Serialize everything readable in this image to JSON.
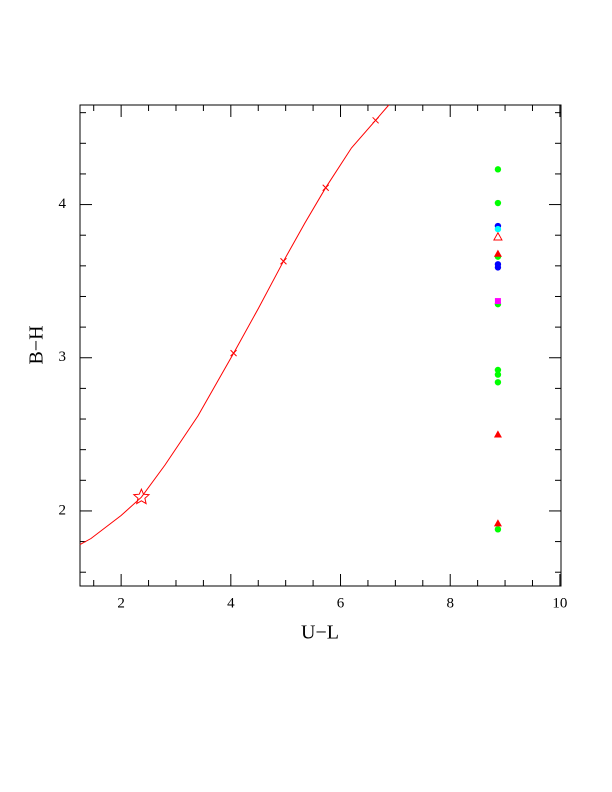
{
  "chart_data": {
    "type": "scatter",
    "xlabel": "U−L",
    "ylabel": "B−H",
    "xlim": [
      1.25,
      10.02
    ],
    "ylim": [
      1.51,
      4.65
    ],
    "xticks": [
      2,
      4,
      6,
      8,
      10
    ],
    "yticks": [
      2,
      3,
      4
    ],
    "xminorticks": [
      1.5,
      2.5,
      3,
      3.5,
      4.5,
      5,
      5.5,
      6.5,
      7,
      7.5,
      8.5,
      9,
      9.5
    ],
    "yminorticks": [
      1.6,
      1.8,
      2.2,
      2.4,
      2.6,
      2.8,
      3.2,
      3.4,
      3.6,
      3.8,
      4.2,
      4.4,
      4.6
    ],
    "series": [
      {
        "marker": "line",
        "color": "#ff0000",
        "x": [
          1.25,
          1.45,
          2.0,
          2.37,
          2.8,
          3.4,
          4.05,
          4.5,
          4.96,
          5.35,
          5.73,
          6.2,
          6.64,
          6.88
        ],
        "y": [
          1.78,
          1.82,
          1.97,
          2.09,
          2.3,
          2.62,
          3.03,
          3.32,
          3.63,
          3.88,
          4.11,
          4.37,
          4.55,
          4.65
        ]
      },
      {
        "marker": "cross",
        "color": "#ff0000",
        "x": [
          4.05,
          4.96,
          5.73,
          6.64
        ],
        "y": [
          3.03,
          3.63,
          4.11,
          4.55
        ]
      },
      {
        "marker": "star",
        "color": "#ff0000",
        "x": [
          2.37
        ],
        "y": [
          2.09
        ]
      },
      {
        "marker": "circle",
        "color": "#00ff00",
        "x": [
          8.87,
          8.87,
          8.87,
          8.87,
          8.87,
          8.87,
          8.87,
          8.87
        ],
        "y": [
          4.23,
          4.01,
          3.66,
          3.35,
          2.92,
          2.89,
          2.84,
          1.88
        ]
      },
      {
        "marker": "circle",
        "color": "#0000ff",
        "x": [
          8.87,
          8.87,
          8.87
        ],
        "y": [
          3.86,
          3.61,
          3.59
        ]
      },
      {
        "marker": "circle",
        "color": "#00ffff",
        "x": [
          8.87
        ],
        "y": [
          3.84
        ]
      },
      {
        "marker": "square",
        "color": "#ff00ff",
        "x": [
          8.87
        ],
        "y": [
          3.37
        ]
      },
      {
        "marker": "open-triangle",
        "color": "#ff0000",
        "x": [
          8.87
        ],
        "y": [
          3.79
        ]
      },
      {
        "marker": "triangle",
        "color": "#ff0000",
        "x": [
          8.87,
          8.87,
          8.87
        ],
        "y": [
          3.68,
          2.5,
          1.92
        ]
      }
    ]
  }
}
